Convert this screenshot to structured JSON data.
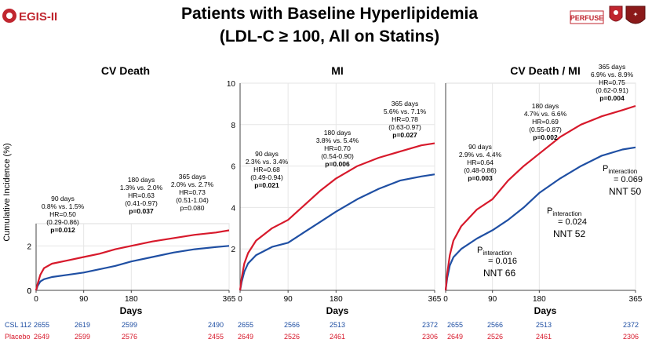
{
  "header": {
    "logo_text": "EGIS-II",
    "title_line1": "Patients with Baseline Hyperlipidemia",
    "title_line2": "(LDL-C ≥ 100, All on Statins)",
    "partner_logo_text": "PERFUSE"
  },
  "colors": {
    "cslcolor": "#1f4fa3",
    "placebo": "#d7192b",
    "grid": "#e6e6e6"
  },
  "shared": {
    "ylabel": "Cumulative Incidence (%)",
    "xlabel": "Days",
    "risk_labels": [
      "CSL 112",
      "Placebo"
    ]
  },
  "chart_data": [
    {
      "type": "line",
      "title": "CV Death",
      "xlabel": "Days",
      "ylabel": "Cumulative Incidence (%)",
      "xlim": [
        0,
        365
      ],
      "ylim": [
        0,
        3
      ],
      "xticks": [
        0,
        90,
        180,
        365
      ],
      "yticks": [
        0,
        2
      ],
      "series": [
        {
          "name": "CSL 112",
          "color": "#1f4fa3",
          "x": [
            0,
            3,
            8,
            15,
            30,
            60,
            90,
            120,
            150,
            180,
            220,
            260,
            300,
            340,
            365
          ],
          "y": [
            0,
            0.2,
            0.4,
            0.5,
            0.6,
            0.7,
            0.8,
            0.95,
            1.1,
            1.3,
            1.5,
            1.7,
            1.85,
            1.95,
            2.0
          ]
        },
        {
          "name": "Placebo",
          "color": "#d7192b",
          "x": [
            0,
            3,
            8,
            15,
            30,
            60,
            90,
            120,
            150,
            180,
            220,
            260,
            300,
            340,
            365
          ],
          "y": [
            0,
            0.3,
            0.7,
            1.0,
            1.2,
            1.35,
            1.5,
            1.65,
            1.85,
            2.0,
            2.2,
            2.35,
            2.5,
            2.6,
            2.7
          ]
        }
      ],
      "annotations": [
        {
          "lines": [
            "90 days",
            "0.8% vs. 1.5%",
            "HR=0.50",
            "(0.29-0.86)"
          ],
          "bold": "p=0.012"
        },
        {
          "lines": [
            "180 days",
            "1.3% vs. 2.0%",
            "HR=0.63",
            "(0.41-0.97)"
          ],
          "bold": "p=0.037"
        },
        {
          "lines": [
            "365 days",
            "2.0% vs. 2.7%",
            "HR=0.73",
            "(0.51-1.04)",
            "p=0.080"
          ],
          "bold": ""
        }
      ],
      "risk_table": {
        "csl": [
          "2655",
          "2619",
          "2599",
          "2490"
        ],
        "placebo": [
          "2649",
          "2599",
          "2576",
          "2455"
        ]
      }
    },
    {
      "type": "line",
      "title": "MI",
      "xlabel": "Days",
      "xlim": [
        0,
        365
      ],
      "ylim": [
        0,
        10
      ],
      "xticks": [
        0,
        90,
        180,
        365
      ],
      "yticks": [
        2,
        4,
        6,
        8,
        10
      ],
      "series": [
        {
          "name": "CSL 112",
          "color": "#1f4fa3",
          "x": [
            0,
            3,
            8,
            15,
            30,
            60,
            90,
            120,
            150,
            180,
            220,
            260,
            300,
            340,
            365
          ],
          "y": [
            0,
            0.4,
            0.9,
            1.3,
            1.7,
            2.1,
            2.3,
            2.8,
            3.3,
            3.8,
            4.4,
            4.9,
            5.3,
            5.5,
            5.6
          ]
        },
        {
          "name": "Placebo",
          "color": "#d7192b",
          "x": [
            0,
            3,
            8,
            15,
            30,
            60,
            90,
            120,
            150,
            180,
            220,
            260,
            300,
            340,
            365
          ],
          "y": [
            0,
            0.6,
            1.3,
            1.8,
            2.4,
            3.0,
            3.4,
            4.1,
            4.8,
            5.4,
            6.0,
            6.4,
            6.7,
            7.0,
            7.1
          ]
        }
      ],
      "annotations": [
        {
          "lines": [
            "90 days",
            "2.3% vs. 3.4%",
            "HR=0.68",
            "(0.49-0.94)"
          ],
          "bold": "p=0.021"
        },
        {
          "lines": [
            "180 days",
            "3.8% vs. 5.4%",
            "HR=0.70",
            "(0.54-0.90)"
          ],
          "bold": "p=0.006"
        },
        {
          "lines": [
            "365 days",
            "5.6% vs. 7.1%",
            "HR=0.78",
            "(0.63-0.97)"
          ],
          "bold": "p=0.027"
        }
      ],
      "risk_table": {
        "csl": [
          "2655",
          "2566",
          "2513",
          "2372"
        ],
        "placebo": [
          "2649",
          "2526",
          "2461",
          "2306"
        ]
      }
    },
    {
      "type": "line",
      "title": "CV Death / MI",
      "xlabel": "Days",
      "xlim": [
        0,
        365
      ],
      "ylim": [
        0,
        10
      ],
      "xticks": [
        0,
        90,
        180,
        365
      ],
      "yticks": [],
      "series": [
        {
          "name": "CSL 112",
          "color": "#1f4fa3",
          "x": [
            0,
            3,
            8,
            15,
            30,
            60,
            90,
            120,
            150,
            180,
            220,
            260,
            300,
            340,
            365
          ],
          "y": [
            0,
            0.6,
            1.2,
            1.6,
            2.0,
            2.5,
            2.9,
            3.4,
            4.0,
            4.7,
            5.4,
            6.0,
            6.5,
            6.8,
            6.9
          ]
        },
        {
          "name": "Placebo",
          "color": "#d7192b",
          "x": [
            0,
            3,
            8,
            15,
            30,
            60,
            90,
            120,
            150,
            180,
            220,
            260,
            300,
            340,
            365
          ],
          "y": [
            0,
            0.8,
            1.7,
            2.4,
            3.1,
            3.9,
            4.4,
            5.3,
            6.0,
            6.6,
            7.4,
            8.0,
            8.4,
            8.7,
            8.9
          ]
        }
      ],
      "annotations": [
        {
          "lines": [
            "90 days",
            "2.9% vs. 4.4%",
            "HR=0.64",
            "(0.48-0.86)"
          ],
          "bold": "p=0.003"
        },
        {
          "lines": [
            "180 days",
            "4.7% vs. 6.6%",
            "HR=0.69",
            "(0.55-0.87)"
          ],
          "bold": "p=0.002"
        },
        {
          "lines": [
            "365 days",
            "6.9% vs. 8.9%",
            "HR=0.75",
            "(0.62-0.91)"
          ],
          "bold": "p=0.004"
        }
      ],
      "interactions": [
        {
          "p_label": "P",
          "p_sub": "interaction",
          "p_value": "= 0.016",
          "nnt": "NNT 66"
        },
        {
          "p_label": "P",
          "p_sub": "interaction",
          "p_value": "= 0.024",
          "nnt": "NNT 52"
        },
        {
          "p_label": "P",
          "p_sub": "interaction",
          "p_value": "= 0.069",
          "nnt": "NNT 50"
        }
      ],
      "risk_table": {
        "csl": [
          "2655",
          "2566",
          "2513",
          "2372"
        ],
        "placebo": [
          "2649",
          "2526",
          "2461",
          "2306"
        ]
      }
    }
  ]
}
